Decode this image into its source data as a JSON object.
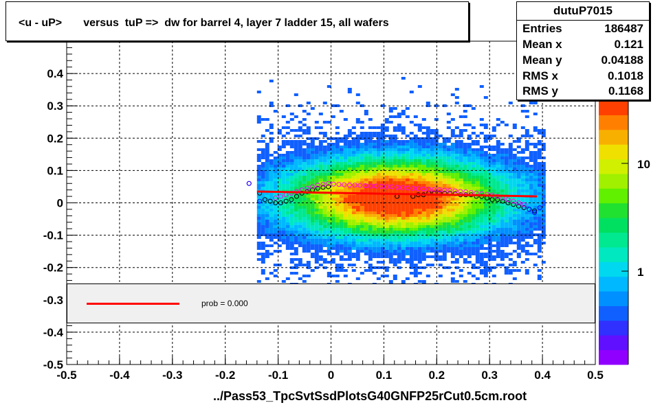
{
  "title": "<u - uP>       versus  tuP =>  dw for barrel 4, layer 7 ladder 15, all wafers",
  "xlabel": "../Pass53_TpcSvtSsdPlotsG40GNFP25rCut0.5cm.root",
  "stats": {
    "name": "dutuP7015",
    "rows": [
      {
        "key": "Entries",
        "value": "186487"
      },
      {
        "key": "Mean x",
        "value": "0.121"
      },
      {
        "key": "Mean y",
        "value": "0.04188"
      },
      {
        "key": "RMS x",
        "value": "0.1018"
      },
      {
        "key": "RMS y",
        "value": "0.1168"
      }
    ]
  },
  "legend": {
    "label": "prob = 0.000",
    "color": "#ff0000"
  },
  "palette": {
    "labels": [
      "1",
      "10"
    ],
    "colors": [
      "#9000ff",
      "#6010ff",
      "#3030ff",
      "#1060ff",
      "#0090ff",
      "#00b8ff",
      "#00d8f0",
      "#00e8c0",
      "#00e890",
      "#00e060",
      "#20e030",
      "#60f000",
      "#a0f000",
      "#d0f000",
      "#f0e000",
      "#f8b000",
      "#ff8000",
      "#ff4000"
    ]
  },
  "chart_data": {
    "type": "heatmap",
    "title": "<u - uP>       versus  tuP =>  dw for barrel 4, layer 7 ladder 15, all wafers",
    "xlabel": "../Pass53_TpcSvtSsdPlotsG40GNFP25rCut0.5cm.root",
    "ylabel": "",
    "xlim": [
      -0.5,
      0.5
    ],
    "ylim": [
      -0.5,
      0.5
    ],
    "xticks": [
      "-0.5",
      "-0.4",
      "-0.3",
      "-0.2",
      "-0.1",
      "0",
      "0.1",
      "0.2",
      "0.3",
      "0.4",
      "0.5"
    ],
    "yticks": [
      "-0.5",
      "-0.4",
      "-0.3",
      "-0.2",
      "-0.1",
      "0",
      "0.1",
      "0.2",
      "0.3",
      "0.4"
    ],
    "grid": true,
    "z_log_scale": true,
    "series": [
      {
        "name": "black profile",
        "color": "#000000",
        "x": [
          -0.135,
          -0.125,
          -0.115,
          -0.105,
          -0.095,
          -0.085,
          -0.075,
          -0.065,
          -0.055,
          -0.045,
          -0.035,
          -0.025,
          -0.015,
          -0.005,
          0.125,
          0.155,
          0.165,
          0.175,
          0.185,
          0.195,
          0.205,
          0.215,
          0.225,
          0.235,
          0.245,
          0.255,
          0.265,
          0.275,
          0.285,
          0.295,
          0.305,
          0.315,
          0.325,
          0.335,
          0.345,
          0.355,
          0.365,
          0.375,
          0.385
        ],
        "y": [
          0.03,
          0.01,
          0.005,
          0.0,
          0.0,
          0.005,
          0.01,
          0.02,
          0.03,
          0.035,
          0.04,
          0.045,
          0.048,
          0.05,
          0.02,
          0.02,
          0.025,
          0.025,
          0.03,
          0.03,
          0.03,
          0.03,
          0.03,
          0.028,
          0.025,
          0.025,
          0.025,
          0.02,
          0.02,
          0.015,
          0.01,
          0.01,
          0.005,
          0.0,
          -0.005,
          -0.01,
          -0.015,
          -0.02,
          -0.025
        ]
      },
      {
        "name": "magenta profile",
        "color": "#ff00ff",
        "x": [
          -0.155,
          -0.105,
          -0.095,
          -0.085,
          -0.075,
          -0.065,
          -0.055,
          -0.045,
          -0.035,
          -0.025,
          -0.015,
          -0.005,
          0.005,
          0.015,
          0.025,
          0.035,
          0.045,
          0.055,
          0.065,
          0.075,
          0.085,
          0.095,
          0.105,
          0.115,
          0.125,
          0.135,
          0.145,
          0.155,
          0.165,
          0.175,
          0.185,
          0.195,
          0.205,
          0.215,
          0.225,
          0.235,
          0.245,
          0.255,
          0.265,
          0.275,
          0.285,
          0.295,
          0.305,
          0.315,
          0.325,
          0.335,
          0.345,
          0.355,
          0.365
        ],
        "y": [
          0.06,
          0.015,
          0.02,
          0.025,
          0.03,
          0.035,
          0.04,
          0.045,
          0.05,
          0.055,
          0.057,
          0.06,
          0.058,
          0.057,
          0.056,
          0.055,
          0.055,
          0.054,
          0.053,
          0.052,
          0.052,
          0.051,
          0.05,
          0.05,
          0.048,
          0.047,
          0.046,
          0.045,
          0.044,
          0.043,
          0.042,
          0.041,
          0.04,
          0.039,
          0.038,
          0.037,
          0.035,
          0.034,
          0.032,
          0.03,
          0.028,
          0.026,
          0.024,
          0.02,
          0.015,
          0.01,
          0.005,
          0.0,
          -0.005
        ]
      },
      {
        "name": "blue profile",
        "color": "#0000ff",
        "x": [
          -0.155,
          -0.135,
          0.375,
          0.385,
          0.395
        ],
        "y": [
          0.06,
          0.005,
          -0.02,
          -0.03,
          -0.015
        ]
      },
      {
        "name": "fit",
        "color": "#ff0000",
        "type": "line",
        "x": [
          -0.14,
          0.39
        ],
        "y": [
          0.035,
          0.02
        ]
      }
    ]
  }
}
